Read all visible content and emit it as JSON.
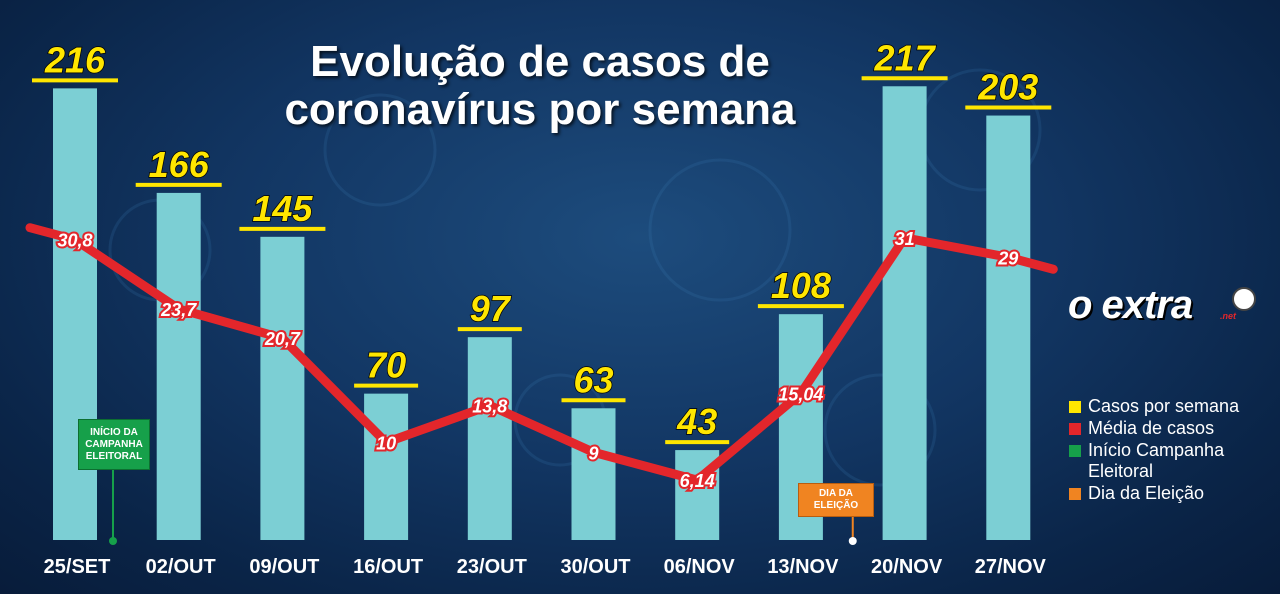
{
  "chart_data": {
    "type": "bar",
    "title": "Evolução de casos de coronavírus por semana",
    "categories": [
      "25/SET",
      "02/OUT",
      "09/OUT",
      "16/OUT",
      "23/OUT",
      "30/OUT",
      "06/NOV",
      "13/NOV",
      "20/NOV",
      "27/NOV"
    ],
    "series": [
      {
        "name": "Casos por semana",
        "type": "bar",
        "color": "#7ccfd4",
        "values": [
          216,
          166,
          145,
          70,
          97,
          63,
          43,
          108,
          217,
          203
        ],
        "labels": [
          "216",
          "166",
          "145",
          "70",
          "97",
          "63",
          "43",
          "108",
          "217",
          "203"
        ]
      },
      {
        "name": "Média de casos",
        "type": "line",
        "color": "#e3262b",
        "values": [
          30.8,
          23.7,
          20.7,
          10,
          13.8,
          9,
          6.14,
          15.04,
          31,
          29
        ],
        "labels": [
          "30,8",
          "23,7",
          "20,7",
          "10",
          "13,8",
          "9",
          "6,14",
          "15,04",
          "31",
          "29"
        ]
      }
    ],
    "ylim": [
      0,
      220
    ],
    "line_ylim": [
      0,
      40
    ],
    "legend_position": "right",
    "annotations": [
      {
        "text": "INÍCIO DA CAMPANHA ELEITORAL",
        "at_category": "25/SET",
        "color": "#16a04a"
      },
      {
        "text": "DIA DA ELEIÇÃO",
        "between": [
          "13/NOV",
          "20/NOV"
        ],
        "color": "#f08421"
      }
    ]
  },
  "title_line1": "Evolução de casos de",
  "title_line2": "coronavírus por semana",
  "logo": {
    "text": "o extra",
    "suffix": ".net"
  },
  "legend": [
    {
      "label": "Casos por semana",
      "color": "#ffe600"
    },
    {
      "label": "Média de casos",
      "color": "#e3262b"
    },
    {
      "label": "Início Campanha Eleitoral",
      "color": "#16a04a"
    },
    {
      "label": "Dia da Eleição",
      "color": "#f08421"
    }
  ],
  "markers": {
    "campaign": "INÍCIO DA CAMPANHA ELEITORAL",
    "election": "DIA DA ELEIÇÃO"
  }
}
